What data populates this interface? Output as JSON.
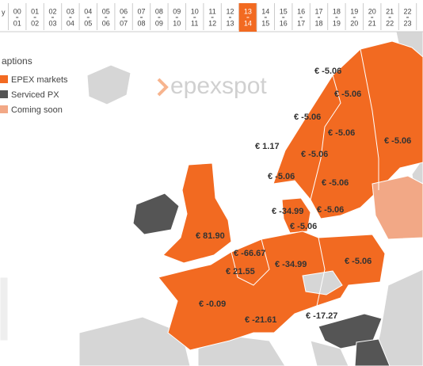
{
  "hour_bar": {
    "leading_fragment": "y",
    "selected": 13,
    "hours": [
      {
        "from": "00",
        "to": "01"
      },
      {
        "from": "01",
        "to": "02"
      },
      {
        "from": "02",
        "to": "03"
      },
      {
        "from": "03",
        "to": "04"
      },
      {
        "from": "04",
        "to": "05"
      },
      {
        "from": "05",
        "to": "06"
      },
      {
        "from": "06",
        "to": "07"
      },
      {
        "from": "07",
        "to": "08"
      },
      {
        "from": "08",
        "to": "09"
      },
      {
        "from": "09",
        "to": "10"
      },
      {
        "from": "10",
        "to": "11"
      },
      {
        "from": "11",
        "to": "12"
      },
      {
        "from": "12",
        "to": "13"
      },
      {
        "from": "13",
        "to": "14"
      },
      {
        "from": "14",
        "to": "15"
      },
      {
        "from": "15",
        "to": "16"
      },
      {
        "from": "16",
        "to": "17"
      },
      {
        "from": "17",
        "to": "18"
      },
      {
        "from": "18",
        "to": "19"
      },
      {
        "from": "19",
        "to": "20"
      },
      {
        "from": "20",
        "to": "21"
      },
      {
        "from": "21",
        "to": "22"
      },
      {
        "from": "22",
        "to": "23"
      }
    ]
  },
  "legend": {
    "title": "aptions",
    "items": [
      "EPEX markets",
      "Serviced PX",
      "Coming soon"
    ]
  },
  "logo": "epexspot",
  "price_labels": [
    "€ -5.06",
    "€ -5.06",
    "€ -5.06",
    "€ -5.06",
    "€ -5.06",
    "€ 1.17",
    "€ -5.06",
    "€ -5.06",
    "€ -5.06",
    "€ -5.06",
    "€ -34.99",
    "€ -5.06",
    "€ 81.90",
    "€ -66.67",
    "€ 21.55",
    "€ -34.99",
    "€ -5.06",
    "€ -0.09",
    "€ -21.61",
    "€ -17.27"
  ]
}
